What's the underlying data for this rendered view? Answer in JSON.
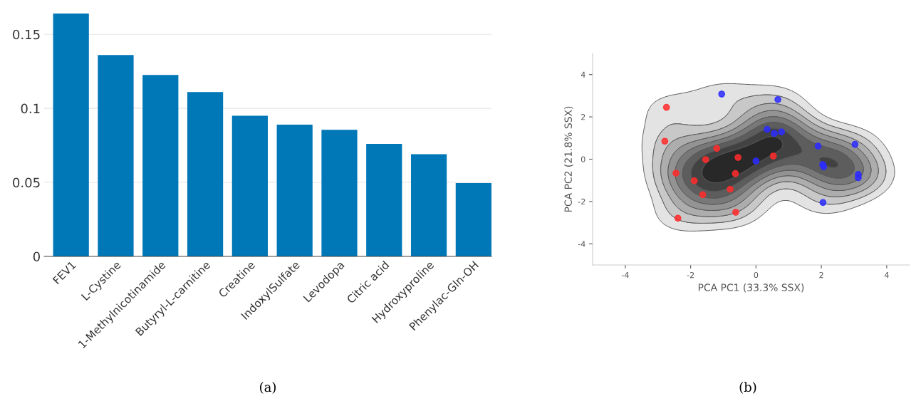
{
  "chart_data": [
    {
      "type": "bar",
      "categories": [
        "FEV1",
        "L-Cystine",
        "1-Methylnicotinamide",
        "Butyryl-L-carnitine",
        "Creatine",
        "IndoxylSulfate",
        "Levodopa",
        "Citric acid",
        "Hydroxyproline",
        "Phenylac-Gln-OH"
      ],
      "values": [
        0.164,
        0.136,
        0.1225,
        0.111,
        0.095,
        0.089,
        0.0855,
        0.076,
        0.069,
        0.0495
      ],
      "color": "#0077b6",
      "ylim": [
        0,
        0.165
      ],
      "yticks": [
        0,
        0.05,
        0.1,
        0.15
      ],
      "grid": "y",
      "annotations": [
        "(a)"
      ]
    },
    {
      "type": "scatter",
      "xlabel": "PCA PC1 (33.3% SSX)",
      "ylabel": "PCA PC2 (21.8% SSX)",
      "xlim": [
        -5,
        4.7
      ],
      "ylim": [
        -5,
        5
      ],
      "xticks": [
        -4,
        -2,
        0,
        2,
        4
      ],
      "yticks": [
        -4,
        -2,
        0,
        2,
        4
      ],
      "grid": false,
      "marker": "circle",
      "series": [
        {
          "color": "#ff2b2b",
          "x": [
            -2.74,
            -2.79,
            -1.2,
            -1.54,
            -0.55,
            0.53,
            -2.45,
            -1.89,
            -0.63,
            -0.79,
            -1.63,
            -0.62,
            -2.39
          ],
          "values": [
            2.45,
            0.85,
            0.51,
            -0.02,
            0.08,
            0.15,
            -0.66,
            -1.02,
            -0.68,
            -1.42,
            -1.68,
            -2.51,
            -2.79
          ]
        },
        {
          "color": "#2b2bff",
          "x": [
            -1.05,
            0.67,
            0.34,
            0.56,
            0.78,
            1.9,
            3.03,
            0.0,
            2.04,
            2.07,
            3.13,
            3.13,
            2.05
          ],
          "values": [
            3.08,
            2.82,
            1.41,
            1.22,
            1.29,
            0.62,
            0.7,
            -0.09,
            -0.25,
            -0.36,
            -0.72,
            -0.88,
            -2.05
          ]
        }
      ],
      "annotations": [
        "(b)"
      ]
    }
  ]
}
